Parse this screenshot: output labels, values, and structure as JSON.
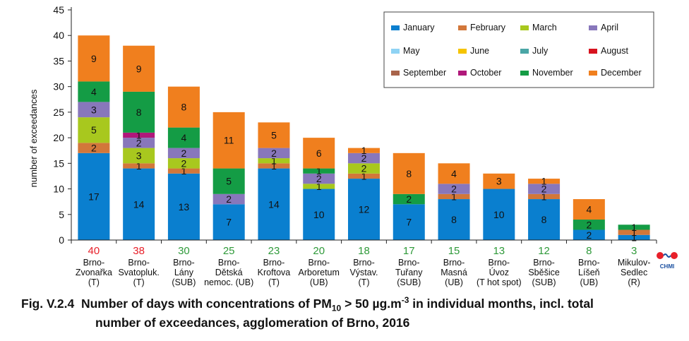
{
  "chart_data": {
    "type": "bar",
    "stacked": true,
    "ylabel": "number of exceedances",
    "ylim": [
      0,
      45
    ],
    "yticks": [
      0,
      5,
      10,
      15,
      20,
      25,
      30,
      35,
      40,
      45
    ],
    "grid": false,
    "legend_position": "top-right",
    "categories": [
      [
        "Brno-",
        "Zvonařka",
        "(T)"
      ],
      [
        "Brno-",
        "Svatopluk.",
        "(T)"
      ],
      [
        "Brno-",
        "Lány",
        "(SUB)"
      ],
      [
        "Brno-",
        "Dětská",
        "nemoc. (UB)"
      ],
      [
        "Brno-",
        "Kroftova",
        "(T)"
      ],
      [
        "Brno-",
        "Arboretum",
        "(UB)"
      ],
      [
        "Brno-",
        "Výstav.",
        "(T)"
      ],
      [
        "Brno-",
        "Tuřany",
        "(SUB)"
      ],
      [
        "Brno-",
        "Masná",
        "(UB)"
      ],
      [
        "Brno-",
        "Úvoz",
        "(T hot spot)"
      ],
      [
        "Brno-",
        "Sběšice",
        "(SUB)"
      ],
      [
        "Brno-",
        "Líšeň",
        "(UB)"
      ],
      [
        "Mikulov-",
        "Sedlec",
        "(R)"
      ]
    ],
    "totals": [
      40,
      38,
      30,
      25,
      23,
      20,
      18,
      17,
      15,
      13,
      12,
      8,
      3
    ],
    "total_colors": [
      "#e8202a",
      "#e8202a",
      "#2f9a3a",
      "#2f9a3a",
      "#2f9a3a",
      "#2f9a3a",
      "#2f9a3a",
      "#2f9a3a",
      "#2f9a3a",
      "#2f9a3a",
      "#2f9a3a",
      "#2f9a3a",
      "#2f9a3a"
    ],
    "series": [
      {
        "name": "January",
        "color": "#0a7fcf",
        "values": [
          17,
          14,
          13,
          7,
          14,
          10,
          12,
          7,
          8,
          10,
          8,
          2,
          1
        ]
      },
      {
        "name": "February",
        "color": "#d2773a",
        "values": [
          2,
          1,
          1,
          0,
          1,
          0,
          1,
          0,
          1,
          0,
          1,
          0,
          1
        ]
      },
      {
        "name": "March",
        "color": "#a8c81e",
        "values": [
          5,
          3,
          2,
          0,
          1,
          1,
          2,
          0,
          0,
          0,
          0,
          0,
          0
        ]
      },
      {
        "name": "April",
        "color": "#8877bb",
        "values": [
          3,
          2,
          2,
          2,
          2,
          2,
          2,
          0,
          2,
          0,
          2,
          0,
          0
        ]
      },
      {
        "name": "May",
        "color": "#8fd3f4",
        "values": [
          0,
          0,
          0,
          0,
          0,
          0,
          0,
          0,
          0,
          0,
          0,
          0,
          0
        ]
      },
      {
        "name": "June",
        "color": "#f5c400",
        "values": [
          0,
          0,
          0,
          0,
          0,
          0,
          0,
          0,
          0,
          0,
          0,
          0,
          0
        ]
      },
      {
        "name": "July",
        "color": "#4aa6a6",
        "values": [
          0,
          0,
          0,
          0,
          0,
          0,
          0,
          0,
          0,
          0,
          0,
          0,
          0
        ]
      },
      {
        "name": "August",
        "color": "#d7121f",
        "values": [
          0,
          0,
          0,
          0,
          0,
          0,
          0,
          0,
          0,
          0,
          0,
          0,
          0
        ]
      },
      {
        "name": "September",
        "color": "#a8644a",
        "values": [
          0,
          0,
          0,
          0,
          0,
          0,
          0,
          0,
          0,
          0,
          0,
          0,
          0
        ]
      },
      {
        "name": "October",
        "color": "#b0187a",
        "values": [
          0,
          1,
          0,
          0,
          0,
          0,
          0,
          0,
          0,
          0,
          0,
          0,
          0
        ]
      },
      {
        "name": "November",
        "color": "#149c45",
        "values": [
          4,
          8,
          4,
          5,
          0,
          1,
          0,
          2,
          0,
          0,
          0,
          2,
          1
        ]
      },
      {
        "name": "December",
        "color": "#f07f1e",
        "values": [
          9,
          9,
          8,
          11,
          5,
          6,
          1,
          8,
          4,
          3,
          1,
          4,
          0
        ]
      }
    ]
  },
  "caption": {
    "prefix": "Fig. V.2.4",
    "line1": "Number of days with concentrations of PM",
    "pm_sub": "10",
    "line1b": " > 50 µg.m",
    "sup": "-3",
    "line1c": " in individual months, incl. total",
    "line2": "number of exceedances, agglomeration of Brno, 2016"
  },
  "logo": {
    "text": "CHMI"
  }
}
